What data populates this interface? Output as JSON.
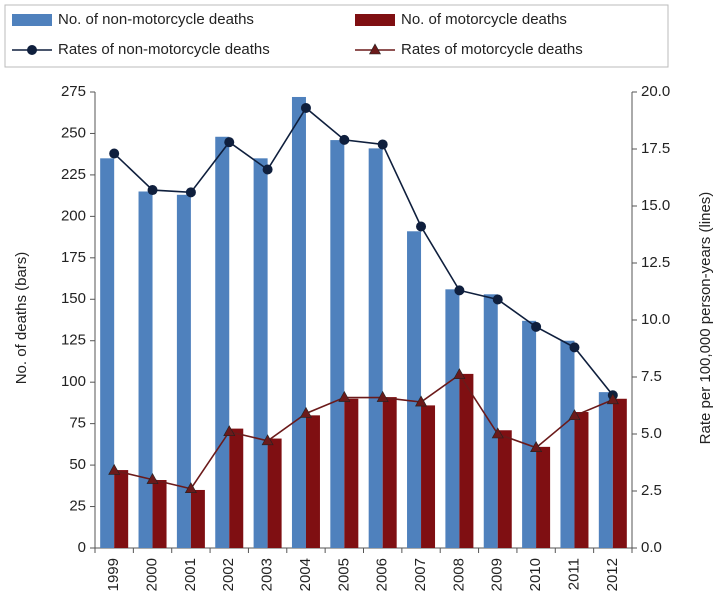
{
  "chart_data": {
    "type": "bar",
    "categories": [
      "1999",
      "2000",
      "2001",
      "2002",
      "2003",
      "2004",
      "2005",
      "2006",
      "2007",
      "2008",
      "2009",
      "2010",
      "2011",
      "2012"
    ],
    "series": [
      {
        "name": "No. of non-motorcycle deaths",
        "type": "bar",
        "color": "#4f81bd",
        "values": [
          235,
          215,
          213,
          248,
          235,
          272,
          246,
          241,
          191,
          156,
          153,
          137,
          125,
          94
        ]
      },
      {
        "name": "No. of motorcycle deaths",
        "type": "bar",
        "color": "#7f0f12",
        "values": [
          47,
          41,
          35,
          72,
          66,
          80,
          90,
          91,
          86,
          105,
          71,
          61,
          82,
          90
        ]
      },
      {
        "name": "Rates of non-motorcycle deaths",
        "type": "line",
        "marker": "circle",
        "color": "#0f1f3d",
        "axis": "y2",
        "values": [
          17.3,
          15.7,
          15.6,
          17.8,
          16.6,
          19.3,
          17.9,
          17.7,
          14.1,
          11.3,
          10.9,
          9.7,
          8.8,
          6.7
        ]
      },
      {
        "name": "Rates of motorcycle deaths",
        "type": "line",
        "marker": "triangle",
        "color": "#6b1a1a",
        "axis": "y2",
        "values": [
          3.4,
          3.0,
          2.6,
          5.1,
          4.7,
          5.9,
          6.6,
          6.6,
          6.4,
          7.6,
          5.0,
          4.4,
          5.8,
          6.5
        ]
      }
    ],
    "ylabel": "No. of deaths (bars)",
    "y2label": "Rate per 100,000 person-years (lines)",
    "ylim": [
      0,
      275
    ],
    "yticks": [
      0,
      25,
      50,
      75,
      100,
      125,
      150,
      175,
      200,
      225,
      250,
      275
    ],
    "y2lim": [
      0,
      20
    ],
    "y2ticks": [
      {
        "value": 0,
        "label": "0.0"
      },
      2.5,
      {
        "value": 5,
        "label": "5.0"
      },
      7.5,
      {
        "value": 10,
        "label": "10.0"
      },
      12.5,
      {
        "value": 15,
        "label": "15.0"
      },
      17.5,
      {
        "value": 20,
        "label": "20.0"
      }
    ],
    "grid": false,
    "legend": "top"
  }
}
